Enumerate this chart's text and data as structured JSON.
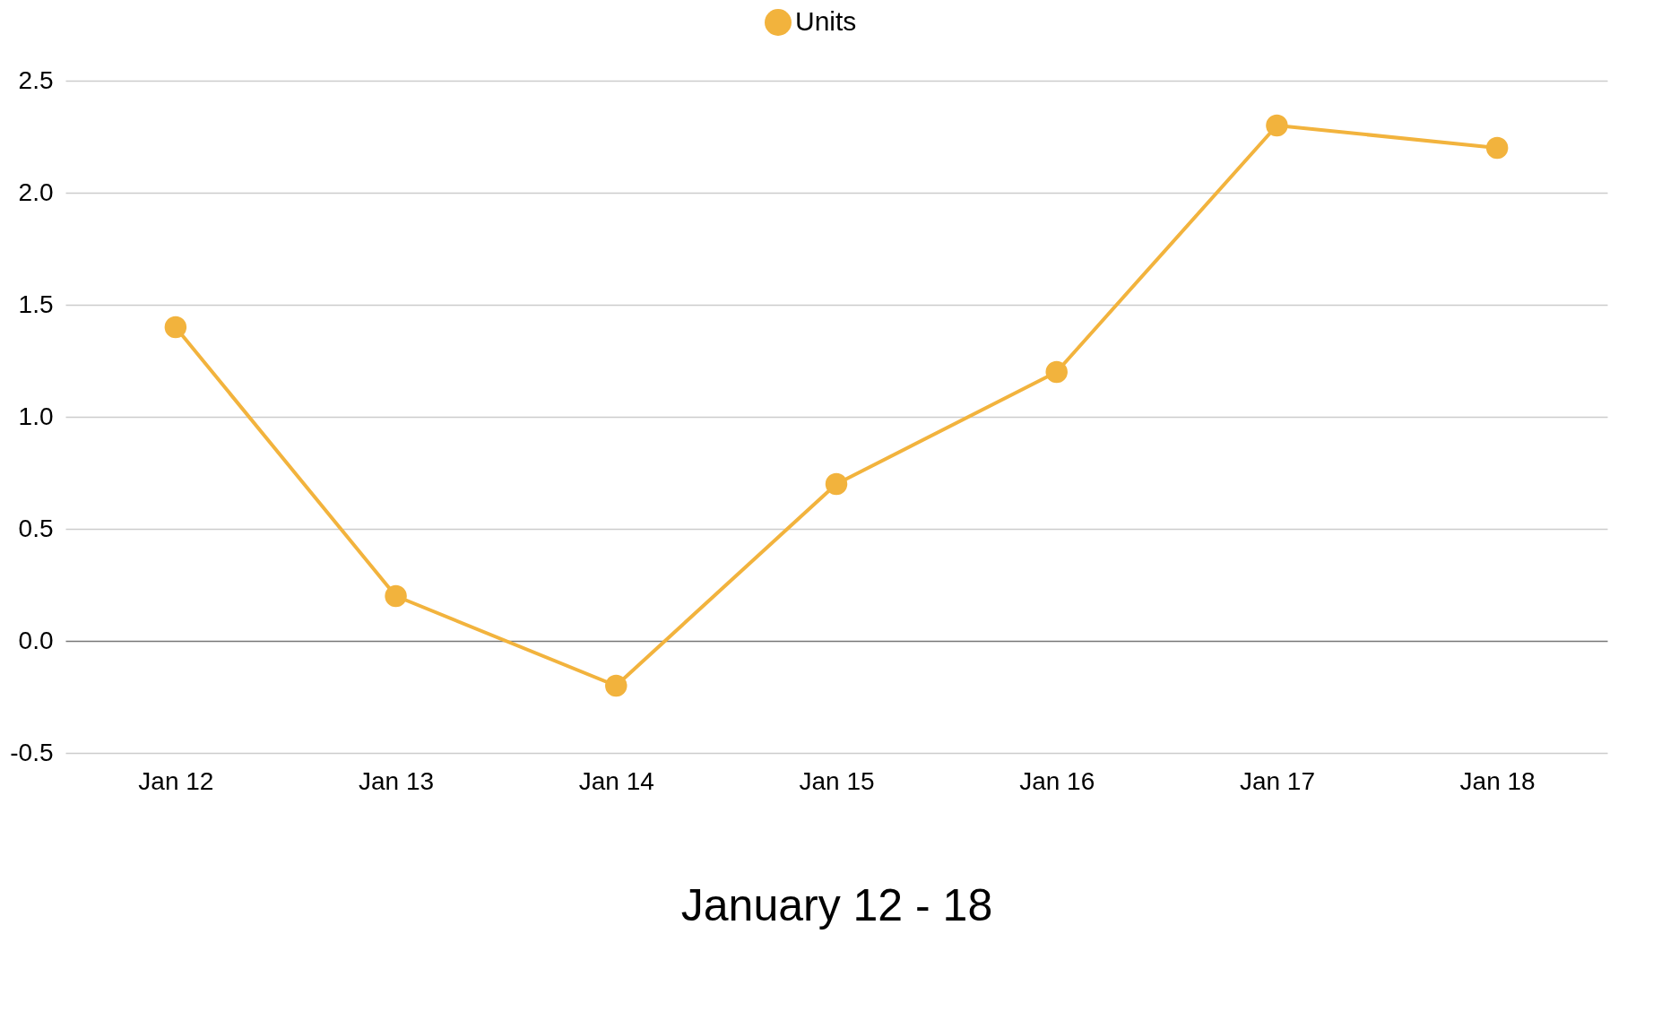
{
  "chart_data": {
    "type": "line",
    "xlabel": "January 12 - 18",
    "categories": [
      "Jan 12",
      "Jan 13",
      "Jan 14",
      "Jan 15",
      "Jan 16",
      "Jan 17",
      "Jan 18"
    ],
    "series": [
      {
        "name": "Units",
        "color": "#f2b33d",
        "values": [
          1.4,
          0.2,
          -0.2,
          0.7,
          1.2,
          2.3,
          2.2
        ]
      }
    ],
    "ylim": [
      -0.5,
      2.5
    ],
    "yticks": [
      {
        "value": -0.5,
        "label": "-0.5"
      },
      {
        "value": 0,
        "label": "0.0"
      },
      {
        "value": 0.5,
        "label": "0.5"
      },
      {
        "value": 1,
        "label": "1.0"
      },
      {
        "value": 1.5,
        "label": "1.5"
      },
      {
        "value": 2,
        "label": "2.0"
      },
      {
        "value": 2.5,
        "label": "2.5"
      }
    ],
    "grid": "y",
    "legend": "top",
    "marker": "circle",
    "line_style": "solid"
  }
}
